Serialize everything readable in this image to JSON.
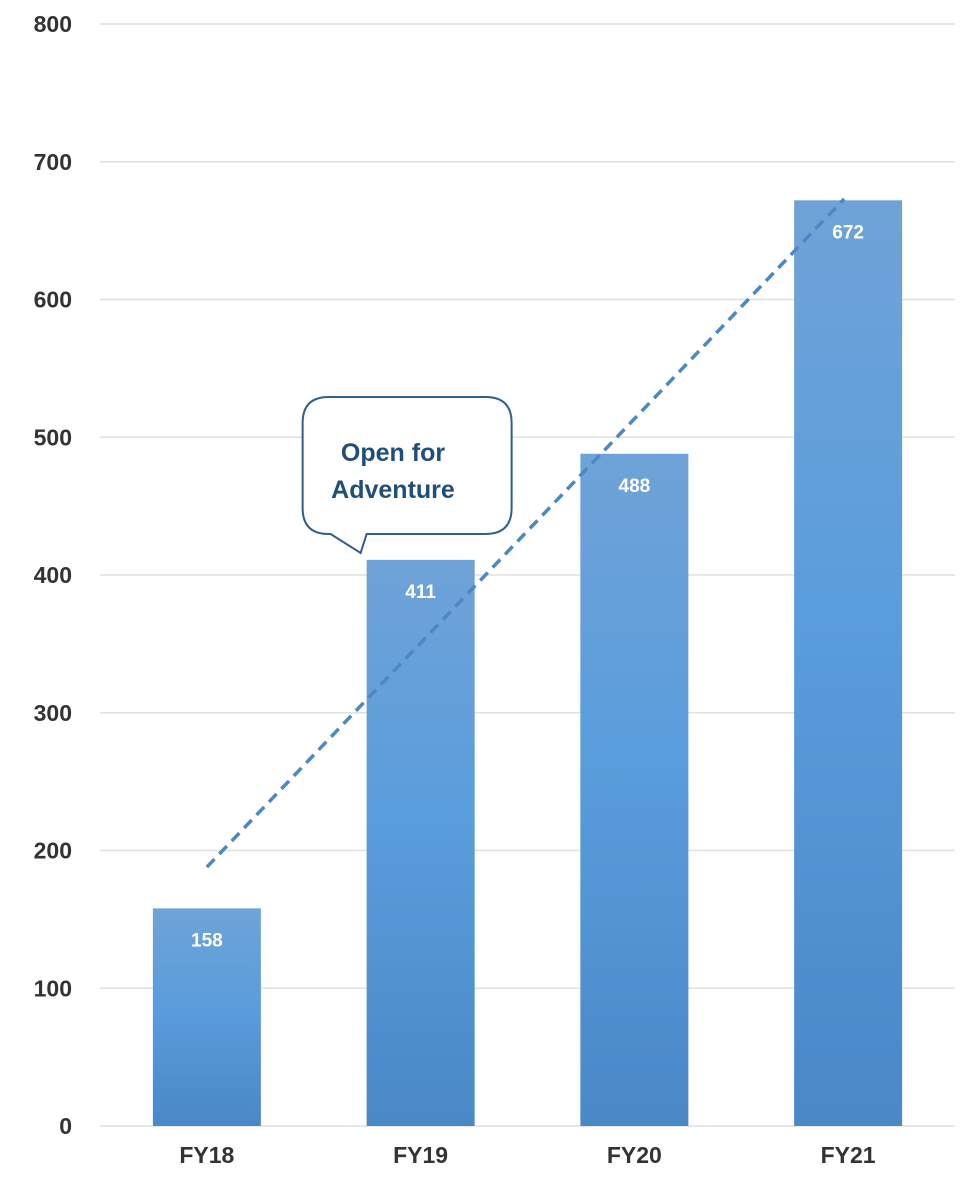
{
  "chart_data": {
    "type": "bar",
    "categories": [
      "FY18",
      "FY19",
      "FY20",
      "FY21"
    ],
    "values": [
      158,
      411,
      488,
      672
    ],
    "ylim": [
      0,
      800
    ],
    "yticks": [
      0,
      100,
      200,
      300,
      400,
      500,
      600,
      700,
      800
    ],
    "grid": true,
    "trendline": {
      "style": "dashed",
      "start": 188,
      "end": 673
    },
    "annotations": [
      {
        "text_lines": [
          "Open for",
          "Adventure"
        ],
        "category": "FY19"
      }
    ],
    "colors": {
      "bar_top": "#6fa3d8",
      "bar_mid": "#5a9ddc",
      "bar_bottom": "#4a88c8",
      "trend": "#4a88c8",
      "grid": "#e0e0e0",
      "axis_text": "#333333",
      "callout_border": "#2e5f8f",
      "callout_text": "#1f4e79"
    }
  }
}
